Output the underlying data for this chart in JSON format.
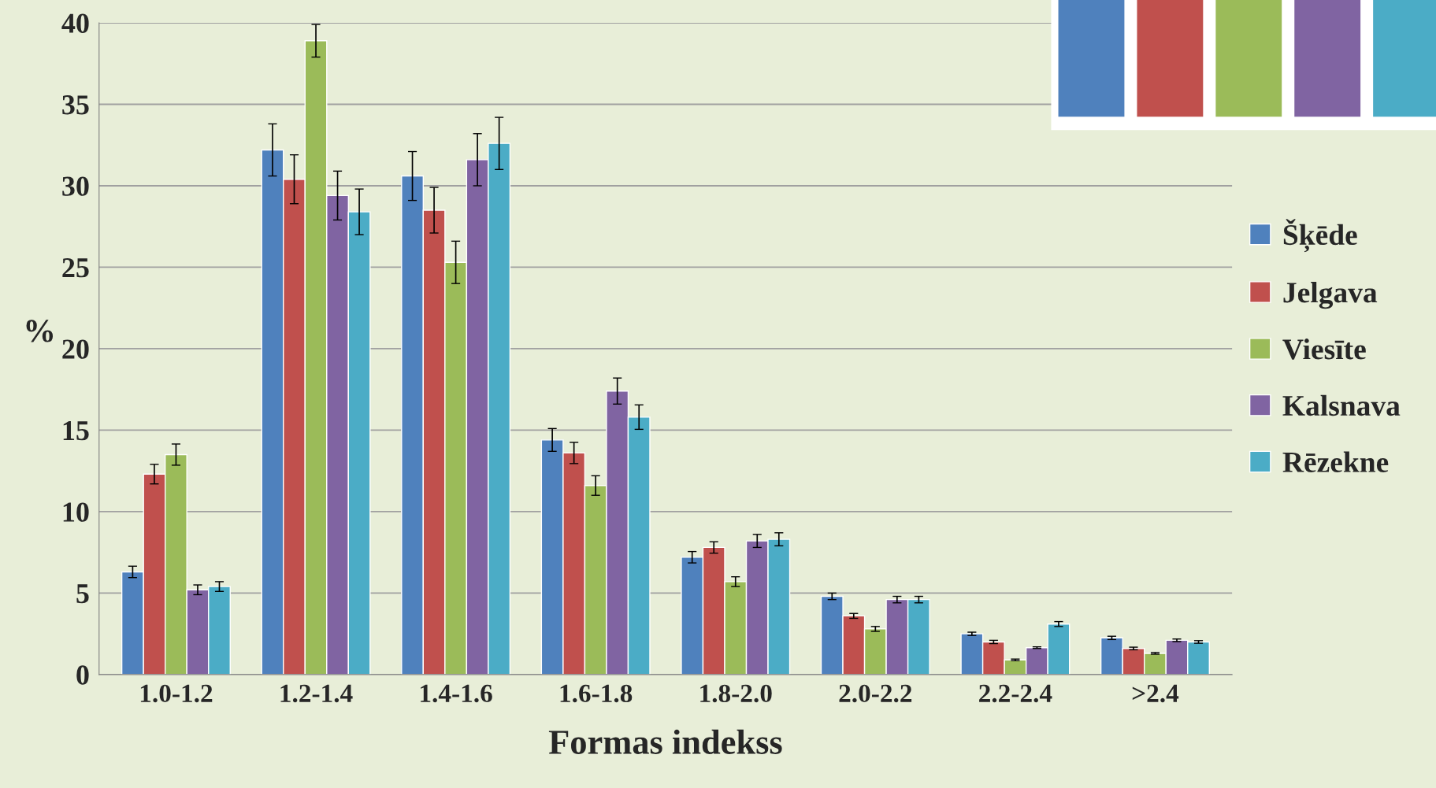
{
  "chart_data": {
    "type": "bar",
    "xlabel": "Formas indekss",
    "ylabel": "%",
    "categories": [
      "1.0-1.2",
      "1.2-1.4",
      "1.4-1.6",
      "1.6-1.8",
      "1.8-2.0",
      "2.0-2.2",
      "2.2-2.4",
      ">2.4"
    ],
    "series": [
      {
        "name": "Šķēde",
        "color": "#4f81bd",
        "values": [
          6.3,
          32.2,
          30.6,
          14.4,
          7.2,
          4.8,
          2.5,
          2.25
        ],
        "errors": [
          0.35,
          1.6,
          1.5,
          0.7,
          0.35,
          0.2,
          0.1,
          0.1
        ]
      },
      {
        "name": "Jelgava",
        "color": "#c0504d",
        "values": [
          12.3,
          30.4,
          28.5,
          13.6,
          7.8,
          3.6,
          2.0,
          1.6
        ],
        "errors": [
          0.6,
          1.5,
          1.4,
          0.65,
          0.35,
          0.15,
          0.1,
          0.08
        ]
      },
      {
        "name": "Viesīte",
        "color": "#9bbb59",
        "values": [
          13.5,
          38.9,
          25.3,
          11.6,
          5.7,
          2.8,
          0.9,
          1.3
        ],
        "errors": [
          0.65,
          1.0,
          1.3,
          0.6,
          0.3,
          0.15,
          0.05,
          0.05
        ]
      },
      {
        "name": "Kalsnava",
        "color": "#8064a2",
        "values": [
          5.2,
          29.4,
          31.6,
          17.4,
          8.2,
          4.6,
          1.65,
          2.1
        ],
        "errors": [
          0.3,
          1.5,
          1.6,
          0.8,
          0.4,
          0.2,
          0.05,
          0.08
        ]
      },
      {
        "name": "Rēzekne",
        "color": "#4bacc6",
        "values": [
          5.4,
          28.4,
          32.6,
          15.8,
          8.3,
          4.6,
          3.1,
          2.0
        ],
        "errors": [
          0.3,
          1.4,
          1.6,
          0.75,
          0.4,
          0.2,
          0.15,
          0.08
        ]
      }
    ],
    "ylim": [
      0,
      40
    ],
    "yticks": [
      0,
      5,
      10,
      15,
      20,
      25,
      30,
      35,
      40
    ],
    "grid": "y",
    "legend": "right"
  }
}
